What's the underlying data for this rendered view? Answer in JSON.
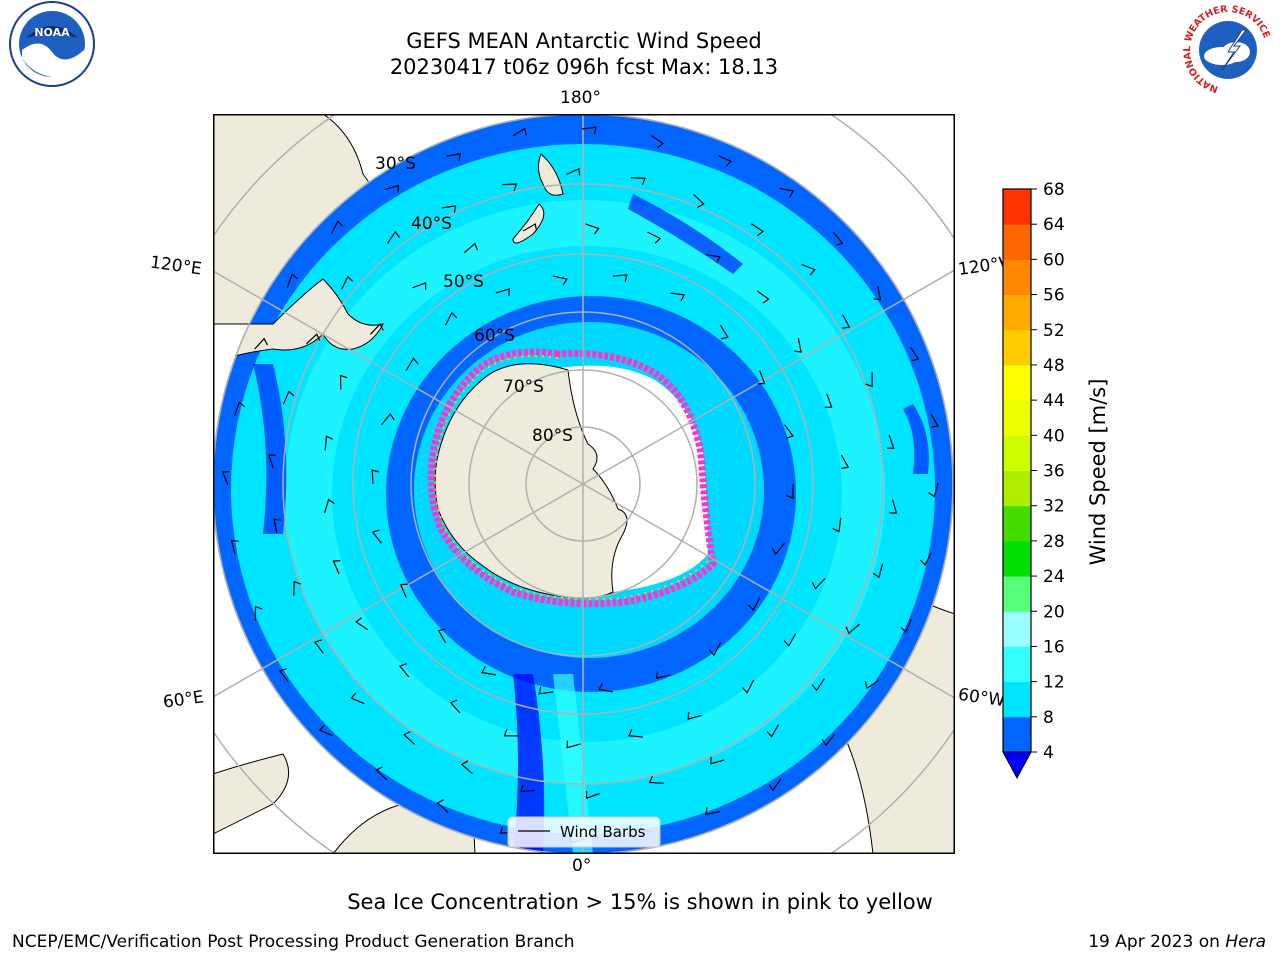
{
  "title": {
    "line1": "GEFS MEAN Antarctic Wind Speed",
    "line2": "20230417 t06z 096h fcst   Max: 18.13"
  },
  "map": {
    "projection": "south polar stereographic",
    "longitude_labels": {
      "top": "180°",
      "bottom": "0°",
      "upper_left": "120°E",
      "upper_right": "120°W",
      "lower_left": "60°E",
      "lower_right": "60°W"
    },
    "latitude_labels": [
      "30°S",
      "40°S",
      "50°S",
      "60°S",
      "70°S",
      "80°S"
    ],
    "legend_label": "Wind Barbs",
    "colors": {
      "land": "#efebdc",
      "ice_free_ocean": "#ffffff",
      "sea_ice_edge": "#ff33cc",
      "grid": "#b0b0b0"
    }
  },
  "colorbar": {
    "label": "Wind Speed [m/s]",
    "ticks": [
      "4",
      "8",
      "12",
      "16",
      "20",
      "24",
      "28",
      "32",
      "36",
      "40",
      "44",
      "48",
      "52",
      "56",
      "60",
      "64",
      "68"
    ],
    "colors": [
      "#0066ff",
      "#00e5ff",
      "#33ffff",
      "#99ffff",
      "#55ff77",
      "#00e000",
      "#44dd00",
      "#b0ee00",
      "#ccff00",
      "#eeff00",
      "#ffff00",
      "#ffcc00",
      "#ffaa00",
      "#ff8800",
      "#ff6600",
      "#ff3300",
      "#ff0000"
    ],
    "under_color": "#0000ff"
  },
  "footnote": "Sea Ice Concentration > 15% is shown in pink to yellow",
  "credit": "NCEP/EMC/Verification Post Processing Product Generation Branch",
  "date": {
    "text": "19 Apr 2023 on",
    "host": "Hera"
  },
  "logos": {
    "noaa": "NOAA",
    "nws_ring": "NATIONAL WEATHER SERVICE"
  }
}
